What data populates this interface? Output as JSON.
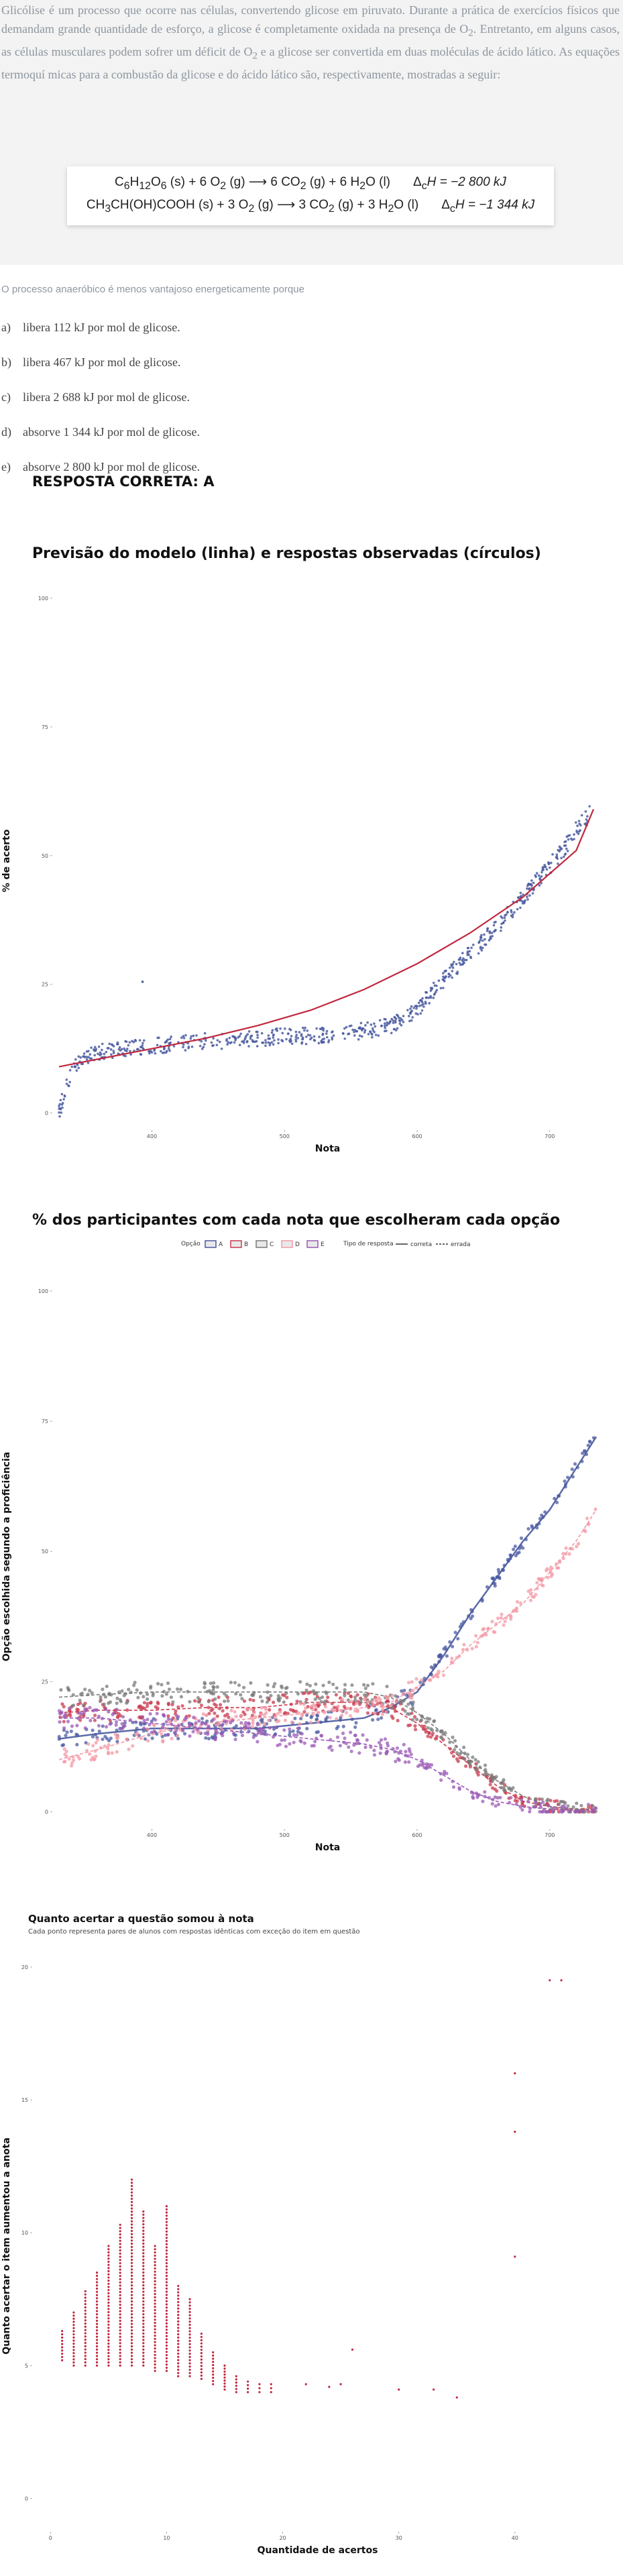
{
  "question": {
    "paragraph_parts": {
      "p1": "Glicólise é um processo que ocorre nas células, convertendo glicose em piruvato. Durante a prática de exercícios físicos que demandam grande quantidade de esforço, a glicose é completamente oxidada na presença de O",
      "sub1": "2",
      "p2": ". Entretanto, em alguns casos, as células musculares podem sofrer um déficit de O",
      "sub2": "2",
      "p3": " e a glicose ser convertida em duas moléculas de ácido lático. As equações termoquí micas para a combustão da glicose e do ácido lático são, respectivamente, mostradas a seguir:"
    },
    "equations": [
      {
        "text": "C6H12O6 (s) + 6 O2 (g) ⟶ 6 CO2 (g) + 6 H2O (l)     ΔcH = −2 800 kJ"
      },
      {
        "text": "CH3CH(OH)COOH (s) + 3 O2 (g) ⟶ 3 CO2 (g) + 3 H2O (l)     ΔcH = −1 344 kJ"
      }
    ],
    "eq1": {
      "c": "C",
      "s6a": "6",
      "h": "H",
      "s12": "12",
      "o": "O",
      "s6b": "6",
      "r1": " (s) + 6 O",
      "s2a": "2",
      "r2": " (g) ⟶ 6 CO",
      "s2b": "2",
      "r3": " (g) + 6 H",
      "s2c": "2",
      "r4": "O (l)",
      "delta": "Δ",
      "dsub": "c",
      "enth": "H = −2 800 kJ"
    },
    "eq2": {
      "lead": "CH",
      "s3a": "3",
      "mid": "CH(OH)COOH (s) + 3 O",
      "s2a": "2",
      "r2": " (g) ⟶ 3 CO",
      "s2b": "2",
      "r3": " (g) + 3 H",
      "s2c": "2",
      "r4": "O (l)",
      "delta": "Δ",
      "dsub": "c",
      "enth": "H = −1 344 kJ"
    },
    "stem": "O processo anaeróbico é menos vantajoso energeticamente porque",
    "options": [
      {
        "letter": "a)",
        "text": "libera 112 kJ por mol de glicose."
      },
      {
        "letter": "b)",
        "text": "libera 467 kJ por mol de glicose."
      },
      {
        "letter": "c)",
        "text": "libera 2 688 kJ por mol de glicose."
      },
      {
        "letter": "d)",
        "text": "absorve 1 344 kJ por mol de glicose."
      },
      {
        "letter": "e)",
        "text": "absorve 2 800 kJ por mol de glicose."
      }
    ],
    "answer": "RESPOSTA CORRETA: A"
  },
  "colors": {
    "blue": "#4a5aa0",
    "red": "#c93a4e",
    "pink": "#f39aa6",
    "gray": "#7a7a7a",
    "purple": "#9b59b6",
    "dark_red": "#c0283e"
  },
  "chart_data": [
    {
      "type": "scatter",
      "title": "Previsão do modelo (linha) e respostas observadas (círculos)",
      "xlabel": "Nota",
      "ylabel": "% de acerto",
      "xlim": [
        330,
        735
      ],
      "ylim": [
        -2,
        100
      ],
      "x_ticks": [
        400,
        500,
        600,
        700
      ],
      "y_ticks": [
        0,
        25,
        50,
        75,
        100
      ],
      "series": [
        {
          "kind": "points",
          "x": [
            330,
            335,
            340,
            345,
            350,
            360,
            380,
            400,
            420,
            440,
            460,
            480,
            500,
            520,
            540,
            560,
            580,
            600,
            610,
            620,
            630,
            640,
            650,
            660,
            670,
            680,
            690,
            700,
            710,
            720,
            730
          ],
          "y": [
            0,
            5,
            8,
            10,
            11,
            12,
            12.5,
            13,
            13.5,
            14,
            14,
            14.5,
            15,
            15,
            15.5,
            16,
            17,
            20,
            23,
            26,
            28.5,
            31,
            33.5,
            36,
            39,
            42,
            45,
            48,
            51,
            55,
            58
          ]
        },
        {
          "kind": "model_line",
          "x": [
            330,
            360,
            400,
            440,
            480,
            520,
            560,
            600,
            640,
            680,
            720,
            733
          ],
          "y": [
            9,
            10.5,
            12.5,
            14.5,
            17,
            20,
            24,
            29,
            35,
            42,
            51,
            59
          ]
        },
        {
          "kind": "outlier",
          "x": [
            393
          ],
          "y": [
            25.5
          ]
        }
      ]
    },
    {
      "type": "scatter",
      "title": "% dos participantes com cada nota que escolheram cada opção",
      "xlabel": "Nota",
      "ylabel": "Opção escolhida segundo a proficiência",
      "xlim": [
        330,
        735
      ],
      "ylim": [
        -2,
        100
      ],
      "x_ticks": [
        400,
        500,
        600,
        700
      ],
      "y_ticks": [
        0,
        25,
        50,
        75,
        100
      ],
      "legend": {
        "option_label": "Opção",
        "options": [
          "A",
          "B",
          "C",
          "D",
          "E"
        ],
        "type_label": "Tipo de resposta",
        "types": [
          "correta",
          "errada"
        ],
        "placement": "top"
      },
      "x": [
        330,
        360,
        400,
        440,
        480,
        520,
        560,
        580,
        600,
        620,
        640,
        660,
        680,
        700,
        720,
        735
      ],
      "series": [
        {
          "name": "A",
          "values": [
            14,
            15,
            16,
            16,
            16,
            17,
            18,
            20,
            23,
            30,
            38,
            45,
            52,
            58,
            66,
            72
          ]
        },
        {
          "name": "B",
          "values": [
            19,
            19.5,
            19.5,
            20,
            20,
            21,
            21,
            20,
            17,
            13,
            9,
            5,
            2,
            1,
            0.5,
            0.5
          ]
        },
        {
          "name": "C",
          "values": [
            22,
            22.5,
            23,
            23,
            23,
            23,
            23,
            22,
            19,
            15,
            10,
            6,
            3,
            1,
            0.5,
            0.5
          ]
        },
        {
          "name": "D",
          "values": [
            10,
            12,
            15,
            17,
            18,
            19,
            20,
            21,
            24,
            27,
            32,
            36,
            40,
            46,
            52,
            58
          ]
        },
        {
          "name": "E",
          "values": [
            18,
            18,
            17,
            16,
            15,
            14,
            13,
            12,
            10,
            7,
            4,
            2,
            1,
            0.5,
            0.3,
            0.3
          ]
        }
      ]
    },
    {
      "type": "scatter",
      "title": "Quanto acertar a questão somou à nota",
      "subtitle": "Cada ponto representa pares de alunos com respostas idênticas com exceção do item em questão",
      "xlabel": "Quantidade de acertos",
      "ylabel": "Quanto acertar o item aumentou a anota",
      "xlim": [
        -1,
        47
      ],
      "ylim": [
        -1,
        20
      ],
      "x_ticks": [
        0,
        10,
        20,
        30,
        40
      ],
      "y_ticks": [
        0,
        5,
        10,
        15,
        20
      ],
      "points": [
        {
          "x": 1,
          "ymin": 5.2,
          "ymax": 6.3
        },
        {
          "x": 2,
          "ymin": 5.0,
          "ymax": 7.0
        },
        {
          "x": 3,
          "ymin": 5.0,
          "ymax": 7.8
        },
        {
          "x": 4,
          "ymin": 5.0,
          "ymax": 8.5
        },
        {
          "x": 5,
          "ymin": 5.0,
          "ymax": 9.5
        },
        {
          "x": 6,
          "ymin": 5.0,
          "ymax": 10.3
        },
        {
          "x": 7,
          "ymin": 5.0,
          "ymax": 12.0
        },
        {
          "x": 8,
          "ymin": 5.0,
          "ymax": 10.8
        },
        {
          "x": 9,
          "ymin": 4.8,
          "ymax": 9.5
        },
        {
          "x": 10,
          "ymin": 4.8,
          "ymax": 11.0
        },
        {
          "x": 11,
          "ymin": 4.6,
          "ymax": 8.0
        },
        {
          "x": 12,
          "ymin": 4.6,
          "ymax": 7.5
        },
        {
          "x": 13,
          "ymin": 4.5,
          "ymax": 6.2
        },
        {
          "x": 14,
          "ymin": 4.3,
          "ymax": 5.5
        },
        {
          "x": 15,
          "ymin": 4.1,
          "ymax": 5.0
        },
        {
          "x": 16,
          "ymin": 4.0,
          "ymax": 4.6
        },
        {
          "x": 17,
          "ymin": 4.0,
          "ymax": 4.4
        },
        {
          "x": 18,
          "ymin": 4.0,
          "ymax": 4.3
        },
        {
          "x": 19,
          "ymin": 4.0,
          "ymax": 4.3
        }
      ],
      "scattered": [
        {
          "x": 22,
          "y": 4.3
        },
        {
          "x": 24,
          "y": 4.2
        },
        {
          "x": 25,
          "y": 4.3
        },
        {
          "x": 26,
          "y": 5.6
        },
        {
          "x": 30,
          "y": 4.1
        },
        {
          "x": 33,
          "y": 4.1
        },
        {
          "x": 35,
          "y": 3.8
        },
        {
          "x": 40,
          "y": 9.1
        },
        {
          "x": 40,
          "y": 13.8
        },
        {
          "x": 40,
          "y": 16.0
        },
        {
          "x": 43,
          "y": 19.5
        },
        {
          "x": 44,
          "y": 19.5
        }
      ]
    }
  ]
}
